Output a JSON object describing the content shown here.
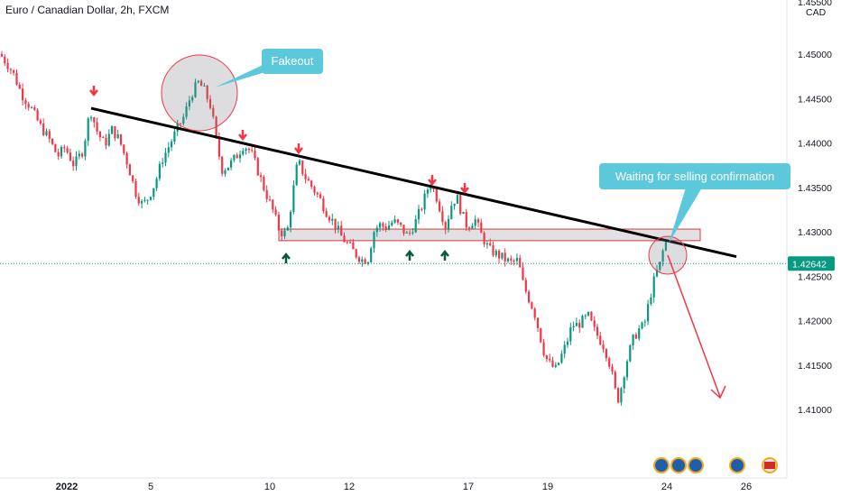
{
  "chart_data": {
    "type": "candlestick",
    "symbol": "Euro / Canadian Dollar, 2h, FXCM",
    "currency": "CAD",
    "price_top_label": "1.45500",
    "ylim": [
      1.4074,
      1.4545
    ],
    "y_ticks": [
      "1.45000",
      "1.44500",
      "1.44000",
      "1.43500",
      "1.43000",
      "1.42500",
      "1.42000",
      "1.41500",
      "1.41000"
    ],
    "x_ticks": [
      "2022",
      "5",
      "10",
      "12",
      "17",
      "19",
      "24",
      "26"
    ],
    "last_price": "1.42642",
    "grid": false,
    "annotations": {
      "fakeout": "Fakeout",
      "waiting": "Waiting for selling confirmation"
    },
    "trendline_start": 1.4439,
    "trendline_end": 1.4272,
    "support_zone": [
      1.4303,
      1.429
    ],
    "price_path": [
      [
        0,
        1.45
      ],
      [
        6,
        1.4492
      ],
      [
        14,
        1.448
      ],
      [
        24,
        1.4455
      ],
      [
        34,
        1.444
      ],
      [
        44,
        1.442
      ],
      [
        54,
        1.4405
      ],
      [
        64,
        1.4385
      ],
      [
        72,
        1.4395
      ],
      [
        82,
        1.4375
      ],
      [
        92,
        1.4392
      ],
      [
        100,
        1.4438
      ],
      [
        108,
        1.4412
      ],
      [
        116,
        1.4398
      ],
      [
        124,
        1.4415
      ],
      [
        132,
        1.4404
      ],
      [
        142,
        1.4375
      ],
      [
        150,
        1.4345
      ],
      [
        158,
        1.433
      ],
      [
        164,
        1.4338
      ],
      [
        172,
        1.4355
      ],
      [
        180,
        1.4382
      ],
      [
        188,
        1.4398
      ],
      [
        196,
        1.4415
      ],
      [
        204,
        1.443
      ],
      [
        212,
        1.4455
      ],
      [
        220,
        1.4468
      ],
      [
        226,
        1.446
      ],
      [
        234,
        1.444
      ],
      [
        240,
        1.44
      ],
      [
        246,
        1.437
      ],
      [
        254,
        1.4375
      ],
      [
        262,
        1.4385
      ],
      [
        270,
        1.4398
      ],
      [
        278,
        1.439
      ],
      [
        286,
        1.4368
      ],
      [
        294,
        1.4345
      ],
      [
        302,
        1.4325
      ],
      [
        310,
        1.43
      ],
      [
        318,
        1.4298
      ],
      [
        324,
        1.434
      ],
      [
        330,
        1.438
      ],
      [
        338,
        1.4362
      ],
      [
        346,
        1.435
      ],
      [
        354,
        1.4338
      ],
      [
        362,
        1.4322
      ],
      [
        370,
        1.431
      ],
      [
        378,
        1.4295
      ],
      [
        386,
        1.4285
      ],
      [
        394,
        1.4275
      ],
      [
        402,
        1.4268
      ],
      [
        408,
        1.427
      ],
      [
        414,
        1.43
      ],
      [
        420,
        1.4308
      ],
      [
        428,
        1.4305
      ],
      [
        436,
        1.4312
      ],
      [
        444,
        1.4305
      ],
      [
        452,
        1.4295
      ],
      [
        460,
        1.431
      ],
      [
        468,
        1.433
      ],
      [
        476,
        1.4355
      ],
      [
        482,
        1.4345
      ],
      [
        488,
        1.4325
      ],
      [
        494,
        1.4305
      ],
      [
        500,
        1.433
      ],
      [
        506,
        1.434
      ],
      [
        512,
        1.432
      ],
      [
        518,
        1.4305
      ],
      [
        526,
        1.4315
      ],
      [
        534,
        1.4295
      ],
      [
        542,
        1.428
      ],
      [
        550,
        1.4275
      ],
      [
        558,
        1.427
      ],
      [
        566,
        1.4265
      ],
      [
        574,
        1.4268
      ],
      [
        580,
        1.424
      ],
      [
        586,
        1.4225
      ],
      [
        592,
        1.421
      ],
      [
        598,
        1.4185
      ],
      [
        604,
        1.416
      ],
      [
        610,
        1.415
      ],
      [
        616,
        1.4145
      ],
      [
        622,
        1.416
      ],
      [
        628,
        1.4175
      ],
      [
        634,
        1.4195
      ],
      [
        640,
        1.4195
      ],
      [
        646,
        1.42
      ],
      [
        652,
        1.4205
      ],
      [
        658,
        1.419
      ],
      [
        664,
        1.418
      ],
      [
        670,
        1.417
      ],
      [
        676,
        1.415
      ],
      [
        682,
        1.412
      ],
      [
        686,
        1.411
      ],
      [
        690,
        1.4135
      ],
      [
        696,
        1.416
      ],
      [
        702,
        1.418
      ],
      [
        708,
        1.419
      ],
      [
        714,
        1.4195
      ],
      [
        720,
        1.4225
      ],
      [
        726,
        1.425
      ],
      [
        732,
        1.4265
      ],
      [
        736,
        1.4285
      ],
      [
        740,
        1.429
      ]
    ]
  }
}
